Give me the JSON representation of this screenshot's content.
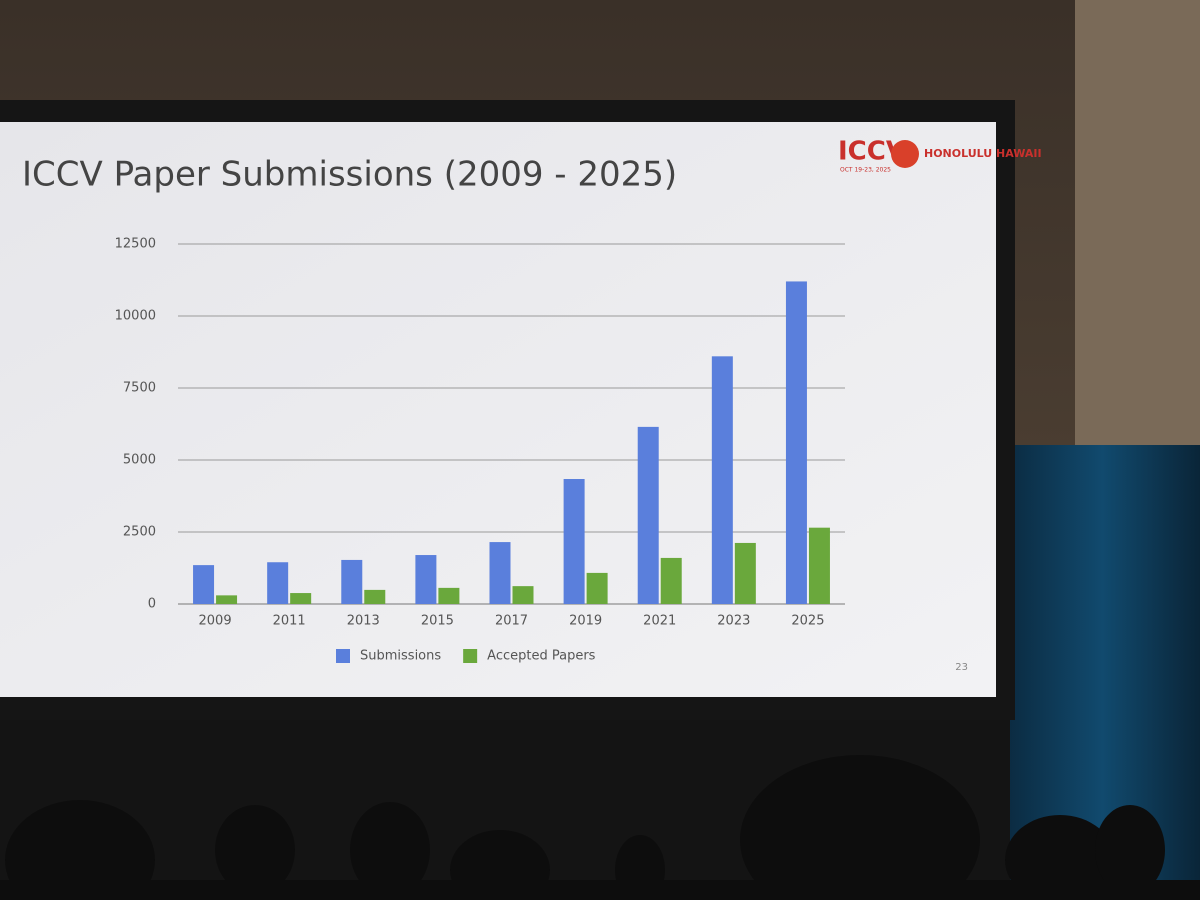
{
  "chart_data": {
    "type": "bar",
    "title": "ICCV Paper Submissions (2009 - 2025)",
    "categories": [
      "2009",
      "2011",
      "2013",
      "2015",
      "2017",
      "2019",
      "2021",
      "2023",
      "2025"
    ],
    "series": [
      {
        "name": "Submissions",
        "color": "#5a7fdc",
        "values": [
          1350,
          1450,
          1530,
          1700,
          2150,
          4340,
          6150,
          8600,
          11200
        ]
      },
      {
        "name": "Accepted Papers",
        "color": "#6aa83c",
        "values": [
          300,
          380,
          490,
          560,
          620,
          1080,
          1600,
          2120,
          2650
        ]
      }
    ],
    "ylim": [
      0,
      12500
    ],
    "yticks": [
      0,
      2500,
      5000,
      7500,
      10000,
      12500
    ],
    "grid": true,
    "legend": "bottom"
  },
  "slide": {
    "logo": "ICCV",
    "logo_place": "HONOLULU HAWAII",
    "logo_dates": "OCT 19-23, 2025",
    "page_number": "23"
  }
}
